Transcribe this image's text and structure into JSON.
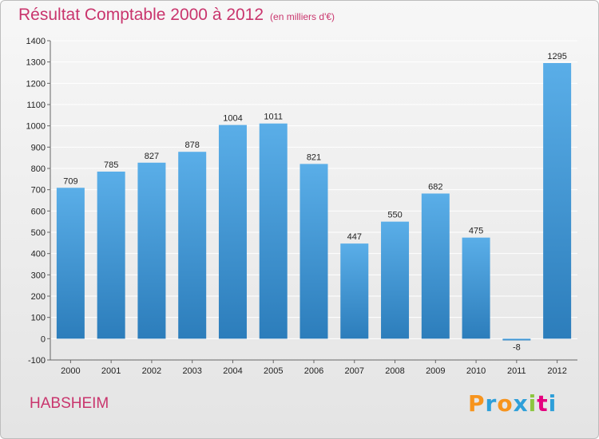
{
  "header": {
    "title": "Résultat Comptable 2000 à 2012",
    "subtitle": "(en milliers d'€)"
  },
  "footer": {
    "commune": "HABSHEIM",
    "brand": "Proxiti",
    "brand_colors": [
      "#f7941d",
      "#2e9fd9",
      "#f7941d",
      "#2e9fd9",
      "#8cc63f",
      "#e5007e",
      "#2e9fd9"
    ]
  },
  "colors": {
    "title": "#c9356d",
    "bar_light": "#5aaee8",
    "bar_dark": "#2c7dbb"
  },
  "chart_data": {
    "type": "bar",
    "title": "Résultat Comptable 2000 à 2012",
    "subtitle": "(en milliers d'€)",
    "xlabel": "",
    "ylabel": "",
    "categories": [
      "2000",
      "2001",
      "2002",
      "2003",
      "2004",
      "2005",
      "2006",
      "2007",
      "2008",
      "2009",
      "2010",
      "2011",
      "2012"
    ],
    "values": [
      709,
      785,
      827,
      878,
      1004,
      1011,
      821,
      447,
      550,
      682,
      475,
      -8,
      1295
    ],
    "ylim": [
      -100,
      1400
    ],
    "yticks": [
      -100,
      0,
      100,
      200,
      300,
      400,
      500,
      600,
      700,
      800,
      900,
      1000,
      1100,
      1200,
      1300,
      1400
    ],
    "grid": true,
    "legend": "none"
  }
}
